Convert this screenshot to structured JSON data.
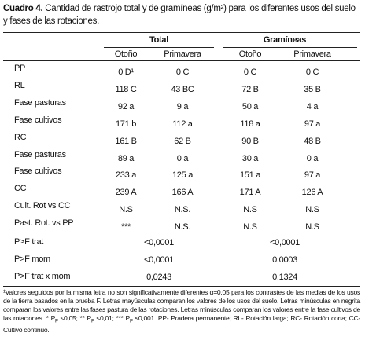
{
  "title": {
    "label": "Cuadro 4.",
    "text": "Cantidad de rastrojo total y de gramíneas (g/m²) para los diferentes usos del suelo y fases de las rotaciones."
  },
  "table": {
    "groups": [
      "Total",
      "Gramíneas"
    ],
    "subheaders": [
      "Otoño",
      "Primavera",
      "Otoño",
      "Primavera"
    ],
    "rows": [
      [
        "PP",
        "0 D¹",
        "0 C",
        "0 C",
        "0 C"
      ],
      [
        "RL",
        "118 C",
        "43 BC",
        "72 B",
        "35 B"
      ],
      [
        "Fase pasturas",
        "92 a",
        "9 a",
        "50 a",
        "4 a"
      ],
      [
        "Fase cultivos",
        "171 b",
        "112 a",
        "118 a",
        "97 a"
      ],
      [
        "RC",
        "161 B",
        "62 B",
        "90 B",
        "48 B"
      ],
      [
        "Fase pasturas",
        "89 a",
        "0 a",
        "30 a",
        "0 a"
      ],
      [
        "Fase cultivos",
        "233 a",
        "125 a",
        "151 a",
        "97 a"
      ],
      [
        "CC",
        "239 A",
        "166 A",
        "171 A",
        "126 A"
      ],
      [
        "Cult. Rot vs CC",
        "N.S",
        "N.S.",
        "N.S",
        "N.S"
      ],
      [
        "Past. Rot. vs PP",
        "***",
        "N.S.",
        "N.S",
        "N.S"
      ]
    ],
    "tests": [
      [
        "P>F trat",
        "<0,0001",
        "<0,0001"
      ],
      [
        "P>F mom",
        "<0,0001",
        "0,0003"
      ],
      [
        "P>F trat x mom",
        "0,0243",
        "0,1324"
      ]
    ]
  },
  "footnote": [
    "¹Valores seguidos por la misma letra no son significativamente diferentes α=0,05 para los contrastes de las medias de los usos de la tierra basados en la prueba F. Letras mayúsculas comparan los valores de los usos del suelo. Letras minúsculas en negrita comparan los valores entre las fases pastura de las rotaciones. Letras minúsculas comparan los valores entre la fase cultivos de las rotaciones. * P",
    "F",
    " ≤0,05; ** P",
    "F",
    " ≤0,01; *** P",
    "F",
    " ≤0,001. PP- Pradera permanente; RL- Rotación larga; RC- Rotación corta; CC-Cultivo continuo."
  ]
}
